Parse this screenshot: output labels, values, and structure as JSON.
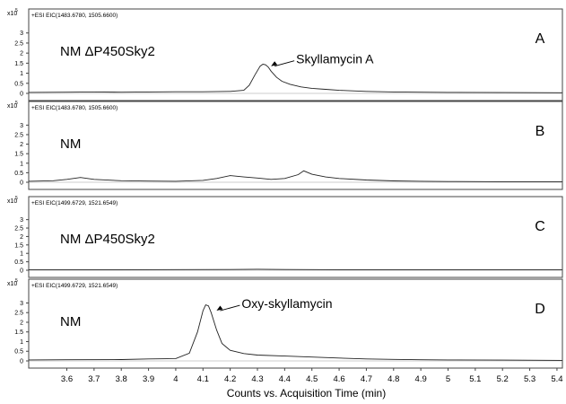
{
  "chart_data": {
    "type": "line",
    "y_exponent_label": "x10",
    "y_exponent_power": "5",
    "x_axis": {
      "label": "Counts vs. Acquisition Time (min)",
      "range": [
        3.46,
        5.42
      ],
      "ticks": [
        3.6,
        3.7,
        3.8,
        3.9,
        4,
        4.1,
        4.2,
        4.3,
        4.4,
        4.5,
        4.6,
        4.7,
        4.8,
        4.9,
        5,
        5.1,
        5.2,
        5.3,
        5.4
      ],
      "tick_labels": [
        "3.6",
        "3.7",
        "3.8",
        "3.9",
        "4",
        "4.1",
        "4.2",
        "4.3",
        "4.4",
        "4.5",
        "4.6",
        "4.7",
        "4.8",
        "4.9",
        "5",
        "5.1",
        "5.2",
        "5.3",
        "5.4"
      ]
    },
    "panels": [
      {
        "eic_label": "+ESI EIC(1483.6780, 1505.6600)",
        "strain": "NM ΔP450Sky2",
        "letter": "A",
        "annotation": "Skyllamycin A",
        "annotation_point": [
          4.34,
          1.35
        ],
        "ylim": [
          0,
          3.3
        ],
        "yticks": [
          0,
          0.5,
          1,
          1.5,
          2,
          2.5,
          3
        ],
        "ytick_labels": [
          "0",
          "0.5",
          "1",
          "1.5",
          "2",
          "2.5",
          "3"
        ],
        "trace": [
          [
            3.46,
            0.05
          ],
          [
            3.6,
            0.06
          ],
          [
            3.7,
            0.07
          ],
          [
            3.8,
            0.06
          ],
          [
            3.9,
            0.07
          ],
          [
            4.0,
            0.08
          ],
          [
            4.1,
            0.08
          ],
          [
            4.2,
            0.1
          ],
          [
            4.25,
            0.15
          ],
          [
            4.27,
            0.4
          ],
          [
            4.29,
            0.9
          ],
          [
            4.31,
            1.35
          ],
          [
            4.32,
            1.45
          ],
          [
            4.33,
            1.42
          ],
          [
            4.34,
            1.3
          ],
          [
            4.35,
            1.1
          ],
          [
            4.37,
            0.8
          ],
          [
            4.39,
            0.6
          ],
          [
            4.42,
            0.45
          ],
          [
            4.46,
            0.32
          ],
          [
            4.5,
            0.25
          ],
          [
            4.55,
            0.2
          ],
          [
            4.6,
            0.15
          ],
          [
            4.7,
            0.1
          ],
          [
            4.8,
            0.07
          ],
          [
            5.0,
            0.05
          ],
          [
            5.2,
            0.04
          ],
          [
            5.42,
            0.03
          ]
        ]
      },
      {
        "eic_label": "+ESI EIC(1483.6780, 1505.6600)",
        "strain": "NM",
        "letter": "B",
        "annotation": "",
        "ylim": [
          0,
          3.3
        ],
        "yticks": [
          0,
          0.5,
          1,
          1.5,
          2,
          2.5,
          3
        ],
        "ytick_labels": [
          "0",
          "0.5",
          "1",
          "1.5",
          "2",
          "2.5",
          "3"
        ],
        "trace": [
          [
            3.46,
            0.05
          ],
          [
            3.55,
            0.08
          ],
          [
            3.6,
            0.15
          ],
          [
            3.65,
            0.25
          ],
          [
            3.7,
            0.15
          ],
          [
            3.8,
            0.08
          ],
          [
            3.9,
            0.06
          ],
          [
            4.0,
            0.05
          ],
          [
            4.1,
            0.1
          ],
          [
            4.15,
            0.2
          ],
          [
            4.2,
            0.35
          ],
          [
            4.25,
            0.28
          ],
          [
            4.3,
            0.22
          ],
          [
            4.35,
            0.15
          ],
          [
            4.4,
            0.2
          ],
          [
            4.45,
            0.4
          ],
          [
            4.47,
            0.6
          ],
          [
            4.5,
            0.42
          ],
          [
            4.55,
            0.28
          ],
          [
            4.6,
            0.2
          ],
          [
            4.7,
            0.12
          ],
          [
            4.8,
            0.07
          ],
          [
            4.9,
            0.05
          ],
          [
            5.0,
            0.04
          ],
          [
            5.2,
            0.03
          ],
          [
            5.42,
            0.03
          ]
        ]
      },
      {
        "eic_label": "+ESI EIC(1499.6729, 1521.6549)",
        "strain": "NM ΔP450Sky2",
        "letter": "C",
        "annotation": "",
        "ylim": [
          0,
          3.3
        ],
        "yticks": [
          0,
          0.5,
          1,
          1.5,
          2,
          2.5,
          3
        ],
        "ytick_labels": [
          "0",
          "0.5",
          "1",
          "1.5",
          "2",
          "2.5",
          "3"
        ],
        "trace": [
          [
            3.46,
            0.03
          ],
          [
            3.8,
            0.03
          ],
          [
            4.2,
            0.04
          ],
          [
            4.3,
            0.06
          ],
          [
            4.4,
            0.04
          ],
          [
            4.6,
            0.03
          ],
          [
            5.0,
            0.03
          ],
          [
            5.42,
            0.03
          ]
        ]
      },
      {
        "eic_label": "+ESI EIC(1499.6729, 1521.6549)",
        "strain": "NM",
        "letter": "D",
        "annotation": "Oxy-skyllamycin",
        "annotation_point": [
          4.14,
          2.6
        ],
        "ylim": [
          0,
          3.3
        ],
        "yticks": [
          0,
          0.5,
          1,
          1.5,
          2,
          2.5,
          3
        ],
        "ytick_labels": [
          "0",
          "0.5",
          "1",
          "1.5",
          "2",
          "2.5",
          "3"
        ],
        "trace": [
          [
            3.46,
            0.05
          ],
          [
            3.6,
            0.06
          ],
          [
            3.8,
            0.07
          ],
          [
            3.9,
            0.1
          ],
          [
            4.0,
            0.12
          ],
          [
            4.05,
            0.4
          ],
          [
            4.08,
            1.5
          ],
          [
            4.1,
            2.6
          ],
          [
            4.11,
            2.9
          ],
          [
            4.12,
            2.85
          ],
          [
            4.13,
            2.5
          ],
          [
            4.15,
            1.6
          ],
          [
            4.17,
            0.9
          ],
          [
            4.2,
            0.55
          ],
          [
            4.25,
            0.38
          ],
          [
            4.3,
            0.3
          ],
          [
            4.4,
            0.25
          ],
          [
            4.5,
            0.2
          ],
          [
            4.6,
            0.15
          ],
          [
            4.7,
            0.1
          ],
          [
            4.8,
            0.08
          ],
          [
            4.9,
            0.06
          ],
          [
            5.0,
            0.05
          ],
          [
            5.2,
            0.04
          ],
          [
            5.42,
            0.03
          ]
        ]
      }
    ]
  }
}
